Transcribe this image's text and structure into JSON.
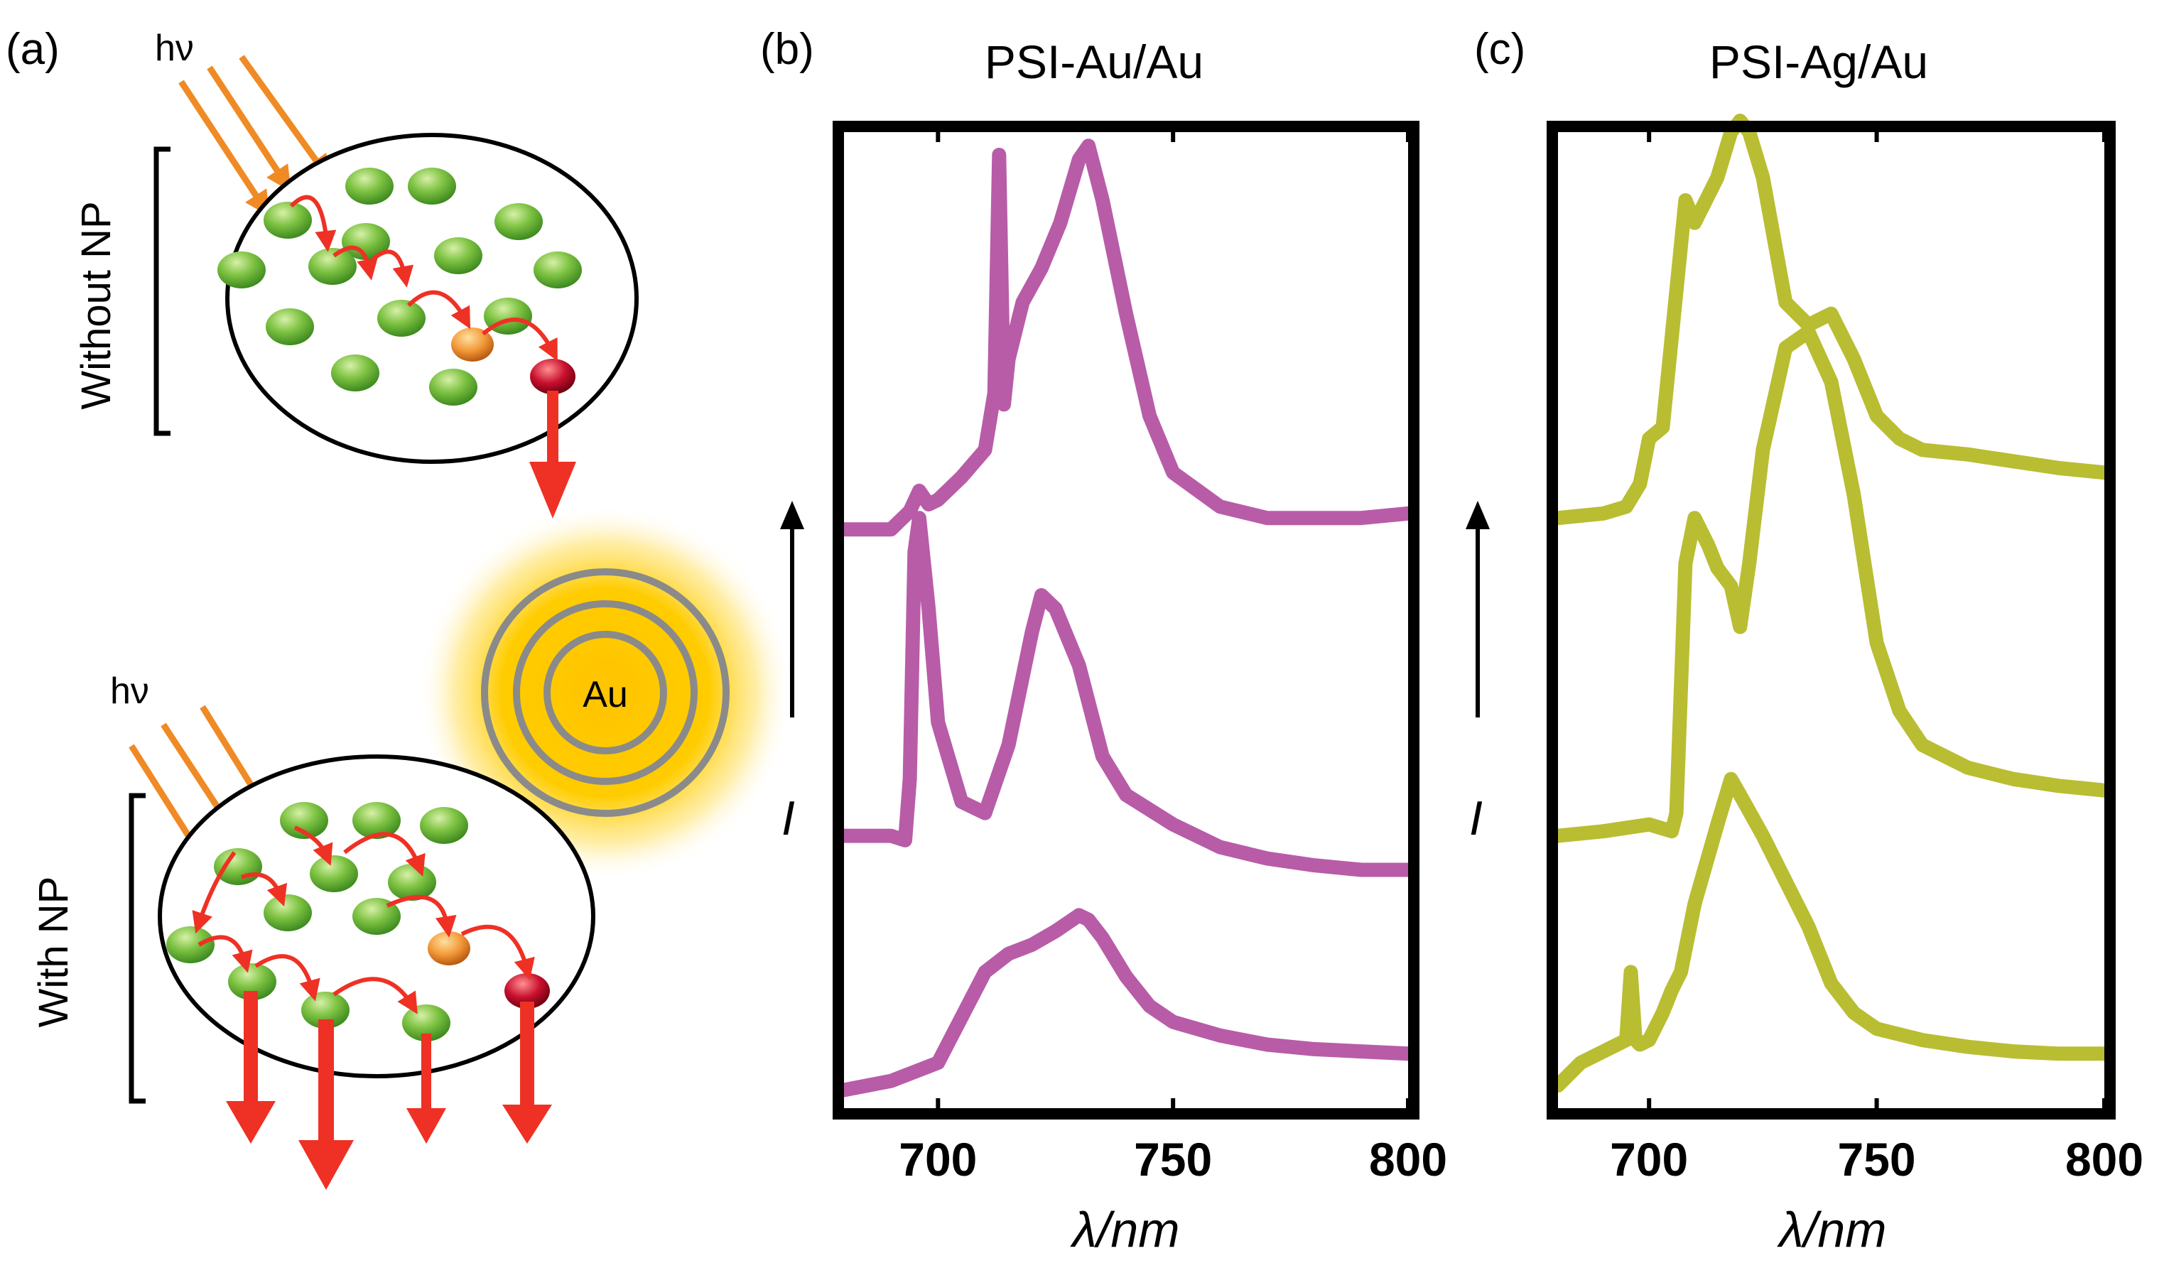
{
  "panel_a": {
    "label": "(a)",
    "top_group_label": "Without NP",
    "bottom_group_label": "With NP",
    "light_label": "hν",
    "particle_label": "Au"
  },
  "colors": {
    "psi_au": "#b85ca8",
    "psi_ag": "#b9bd32",
    "photon_arrow": "#f08a24",
    "transfer_arrow": "#ee3124",
    "chlorophyll": "#7dc242",
    "trap_orange": "#f39a3a",
    "trap_red": "#c8102e",
    "au_glow": "#ffcc00"
  },
  "chart_data": [
    {
      "panel_label": "(b)",
      "title": "PSI-Au/Au",
      "type": "line",
      "xlabel": "λ/nm",
      "ylabel": "I",
      "xlim": [
        680,
        800
      ],
      "xticks": [
        "700",
        "750",
        "800"
      ],
      "y_ticks_shown": false,
      "series": [
        {
          "x": [
            680,
            690,
            694,
            696,
            698,
            700,
            705,
            710,
            712,
            713,
            714,
            715,
            718,
            722,
            726,
            730,
            732,
            735,
            740,
            745,
            750,
            760,
            770,
            780,
            790,
            800
          ],
          "y": [
            2.55,
            2.55,
            2.63,
            2.72,
            2.66,
            2.68,
            2.78,
            2.9,
            3.15,
            4.2,
            3.1,
            3.3,
            3.55,
            3.7,
            3.9,
            4.18,
            4.24,
            4.0,
            3.5,
            3.05,
            2.8,
            2.65,
            2.6,
            2.6,
            2.6,
            2.62
          ]
        },
        {
          "x": [
            680,
            690,
            693,
            694,
            695,
            696,
            698,
            700,
            705,
            710,
            715,
            720,
            722,
            725,
            730,
            735,
            740,
            750,
            760,
            770,
            780,
            790,
            800
          ],
          "y": [
            1.2,
            1.2,
            1.18,
            1.45,
            2.45,
            2.6,
            2.2,
            1.7,
            1.35,
            1.3,
            1.6,
            2.1,
            2.26,
            2.2,
            1.95,
            1.55,
            1.38,
            1.25,
            1.15,
            1.1,
            1.07,
            1.05,
            1.05
          ]
        },
        {
          "x": [
            680,
            690,
            700,
            705,
            710,
            715,
            720,
            725,
            730,
            732,
            735,
            740,
            745,
            750,
            760,
            770,
            780,
            790,
            800
          ],
          "y": [
            0.08,
            0.12,
            0.2,
            0.4,
            0.6,
            0.68,
            0.72,
            0.78,
            0.85,
            0.83,
            0.75,
            0.58,
            0.45,
            0.38,
            0.32,
            0.28,
            0.26,
            0.25,
            0.24
          ]
        }
      ]
    },
    {
      "panel_label": "(c)",
      "title": "PSI-Ag/Au",
      "type": "line",
      "xlabel": "λ/nm",
      "ylabel": "I",
      "xlim": [
        680,
        800
      ],
      "xticks": [
        "700",
        "750",
        "800"
      ],
      "y_ticks_shown": false,
      "series": [
        {
          "x": [
            680,
            690,
            695,
            698,
            700,
            703,
            706,
            708,
            710,
            715,
            718,
            720,
            722,
            725,
            730,
            735,
            740,
            745,
            750,
            755,
            760,
            770,
            780,
            790,
            800
          ],
          "y": [
            2.6,
            2.62,
            2.65,
            2.75,
            2.95,
            3.0,
            3.6,
            4.0,
            3.9,
            4.1,
            4.3,
            4.35,
            4.3,
            4.1,
            3.55,
            3.45,
            3.5,
            3.3,
            3.05,
            2.95,
            2.9,
            2.88,
            2.85,
            2.82,
            2.8
          ]
        },
        {
          "x": [
            680,
            690,
            700,
            705,
            706,
            707,
            708,
            710,
            713,
            715,
            718,
            720,
            722,
            725,
            730,
            735,
            740,
            745,
            750,
            755,
            760,
            770,
            780,
            790,
            800
          ],
          "y": [
            1.2,
            1.22,
            1.25,
            1.22,
            1.3,
            1.85,
            2.4,
            2.6,
            2.48,
            2.38,
            2.3,
            2.12,
            2.4,
            2.9,
            3.35,
            3.42,
            3.2,
            2.7,
            2.05,
            1.75,
            1.6,
            1.5,
            1.45,
            1.42,
            1.4
          ]
        },
        {
          "x": [
            680,
            685,
            690,
            695,
            696,
            697,
            698,
            700,
            703,
            705,
            707,
            710,
            715,
            718,
            720,
            725,
            730,
            735,
            740,
            745,
            750,
            760,
            770,
            780,
            790,
            800
          ],
          "y": [
            0.1,
            0.2,
            0.25,
            0.3,
            0.6,
            0.3,
            0.28,
            0.3,
            0.42,
            0.52,
            0.6,
            0.9,
            1.25,
            1.45,
            1.38,
            1.2,
            1.0,
            0.8,
            0.55,
            0.42,
            0.35,
            0.3,
            0.27,
            0.25,
            0.24,
            0.24
          ]
        }
      ]
    }
  ]
}
